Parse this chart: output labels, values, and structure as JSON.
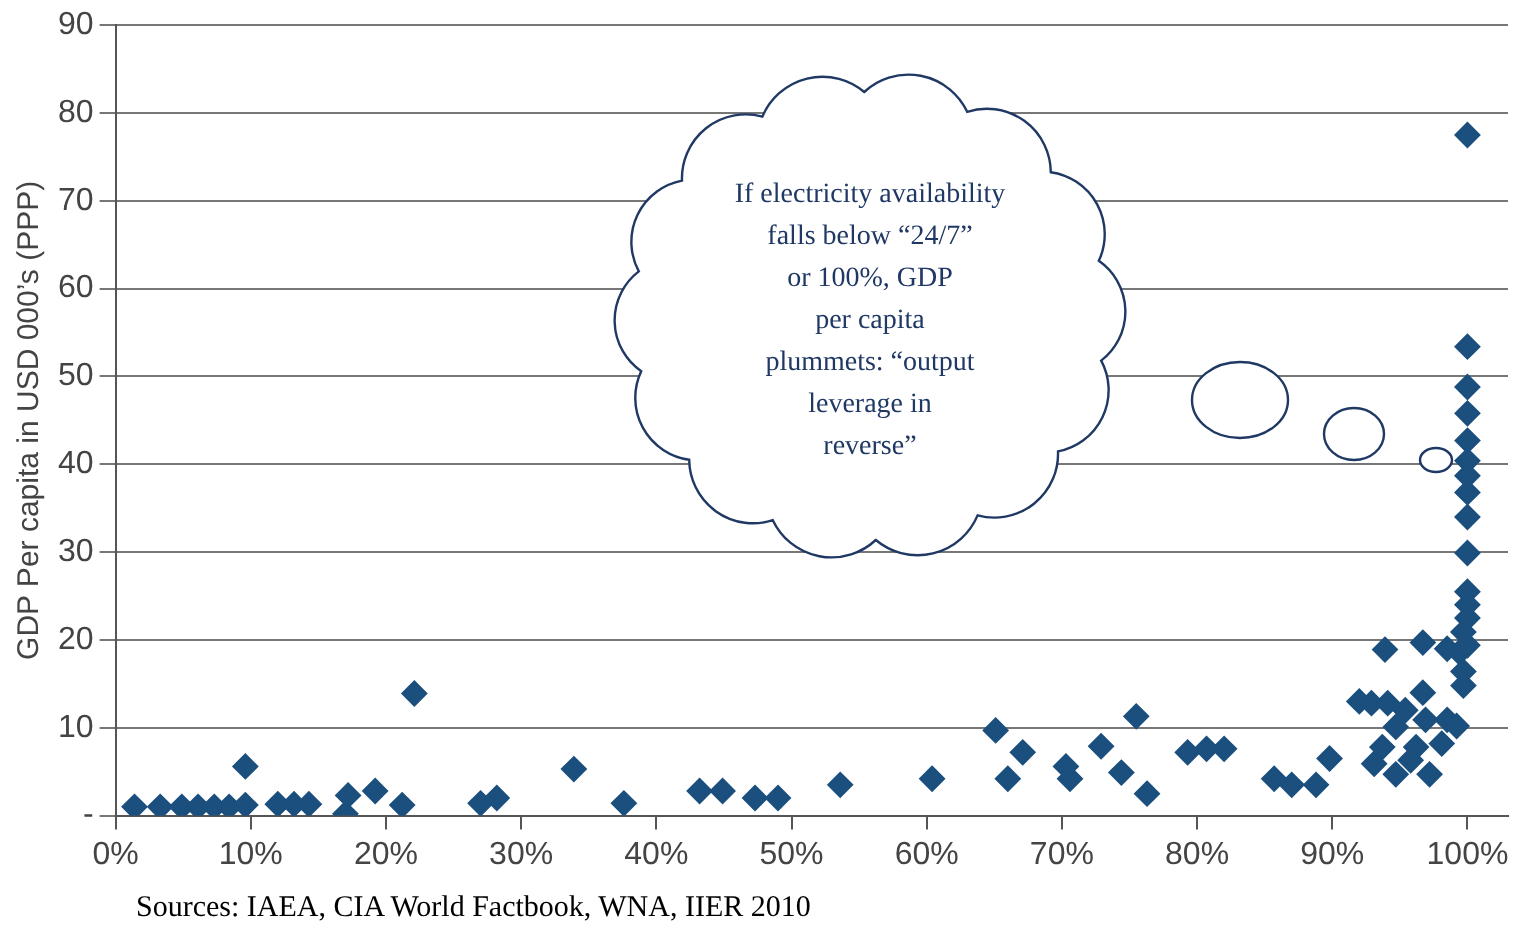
{
  "chart_data": {
    "type": "scatter",
    "ylabel": "GDP Per capita in USD 000’s (PPP)",
    "annotations": [
      "If electricity availability\nfalls below “24/7”\nor 100%, GDP\nper capita\nplummets: “output\nleverage in\nreverse”",
      "Sources: IAEA, CIA World Factbook, WNA, IIER 2010"
    ],
    "xlim": [
      0,
      103
    ],
    "xticks": [
      {
        "value": 0,
        "label": "0%"
      },
      {
        "value": 10,
        "label": "10%"
      },
      {
        "value": 20,
        "label": "20%"
      },
      {
        "value": 30,
        "label": "30%"
      },
      {
        "value": 40,
        "label": "40%"
      },
      {
        "value": 50,
        "label": "50%"
      },
      {
        "value": 60,
        "label": "60%"
      },
      {
        "value": 70,
        "label": "70%"
      },
      {
        "value": 80,
        "label": "80%"
      },
      {
        "value": 90,
        "label": "90%"
      },
      {
        "value": 100,
        "label": "100%"
      }
    ],
    "ylim": [
      0,
      90
    ],
    "yticks": [
      {
        "value": 0,
        "label": "-"
      },
      10,
      20,
      30,
      40,
      50,
      60,
      70,
      80,
      90
    ],
    "grid": "y",
    "marker": "diamond",
    "series": [
      {
        "color": "#1b4f7e",
        "x": [
          1.4,
          3.3,
          4.9,
          6.1,
          7.3,
          8.4,
          9.6,
          9.6,
          12,
          13.2,
          14.3,
          17,
          17.2,
          19.2,
          21.2,
          22.1,
          27,
          28.2,
          33.9,
          37.6,
          43.2,
          44.9,
          47.3,
          49,
          53.6,
          60.4,
          65.1,
          66,
          67.1,
          70.3,
          70.6,
          72.9,
          74.4,
          75.5,
          76.3,
          79.3,
          80.7,
          82,
          85.7,
          87,
          88.8,
          89.8,
          92,
          92.9,
          93.1,
          93.7,
          93.9,
          94.1,
          94.7,
          94.7,
          95.4,
          95.8,
          96.2,
          96.7,
          96.7,
          96.9,
          97.2,
          98.1,
          98.5,
          98.5,
          99.2,
          99.4,
          99.7,
          99.7,
          99.7,
          100,
          100,
          100,
          100,
          100,
          100,
          100,
          100,
          100,
          100,
          100,
          100,
          100,
          100
        ],
        "values": [
          1,
          1,
          1,
          1,
          1,
          1,
          1.2,
          5.6,
          1.3,
          1.3,
          1.3,
          0.2,
          2.3,
          2.8,
          1.2,
          13.9,
          1.4,
          2,
          5.3,
          1.4,
          2.8,
          2.8,
          2,
          2,
          3.5,
          4.2,
          9.7,
          4.2,
          7.2,
          5.6,
          4.2,
          7.9,
          4.9,
          11.3,
          2.5,
          7.2,
          7.6,
          7.6,
          4.2,
          3.5,
          3.5,
          6.5,
          13,
          12.8,
          5.9,
          7.8,
          18.9,
          12.8,
          10.1,
          4.7,
          12,
          6.3,
          7.8,
          19.7,
          14,
          10.9,
          4.7,
          8.2,
          10.9,
          19,
          10.2,
          18.6,
          16.4,
          14.8,
          20.9,
          19.4,
          22.5,
          24,
          25.5,
          29.9,
          34,
          36.8,
          38.7,
          40.4,
          42.7,
          45.8,
          48.8,
          53.4,
          77.5
        ]
      }
    ]
  }
}
